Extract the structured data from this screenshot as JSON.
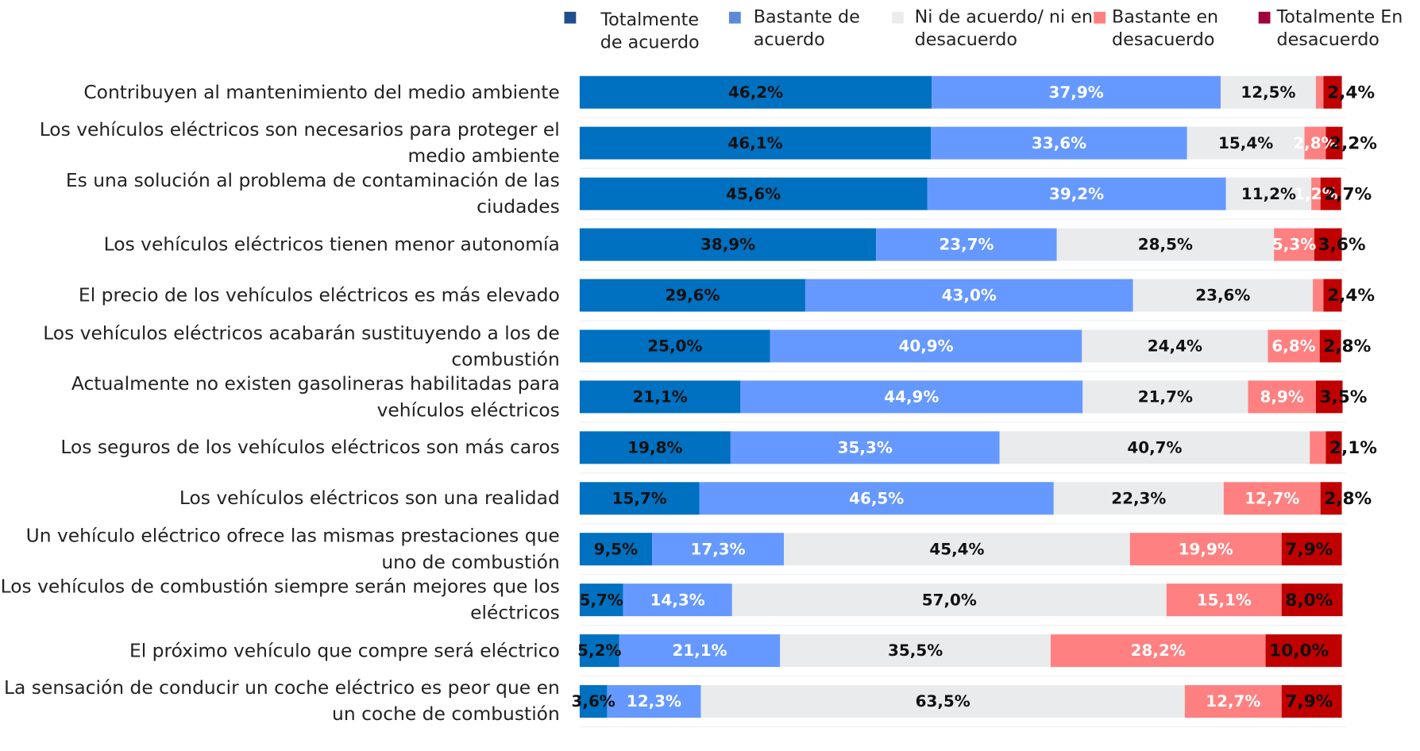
{
  "chart_data": {
    "type": "bar",
    "orientation": "horizontal",
    "stacked": true,
    "legend": "top",
    "xlim": [
      0,
      100
    ],
    "categories": [
      "Contribuyen al mantenimiento del medio ambiente",
      "Los vehículos eléctricos son necesarios para proteger el medio ambiente",
      "Es una solución al problema de contaminación de las ciudades",
      "Los vehículos eléctricos tienen menor autonomía",
      "El precio de los vehículos eléctricos es más elevado",
      "Los vehículos eléctricos acabarán sustituyendo a los de combustión",
      "Actualmente no existen gasolineras habilitadas para vehículos eléctricos",
      "Los seguros de los vehículos eléctricos son más caros",
      "Los vehículos eléctricos son una realidad",
      "Un vehículo eléctrico ofrece las mismas prestaciones que uno de combustión",
      "Los vehículos de combustión siempre serán mejores que los eléctricos",
      "El próximo vehículo que compre será eléctrico",
      "La sensación de conducir un coche eléctrico es peor que en un coche de combustión"
    ],
    "series": [
      {
        "name": "Totalmente de acuerdo",
        "color": "#0070c0",
        "legend_color": "#1f4e8c",
        "label_color": "#111111",
        "values": [
          46.2,
          46.1,
          45.6,
          38.9,
          29.6,
          25.0,
          21.1,
          19.8,
          15.7,
          9.5,
          5.7,
          5.2,
          3.6
        ],
        "value_labels": [
          "46,2%",
          "46,1%",
          "45,6%",
          "38,9%",
          "29,6%",
          "25,0%",
          "21,1%",
          "19,8%",
          "15,7%",
          "9,5%",
          "5,7%",
          "5,2%",
          "3,6%"
        ]
      },
      {
        "name": "Bastante de acuerdo",
        "color": "#6699ff",
        "legend_color": "#5b8bd8",
        "label_color": "#ffffff",
        "values": [
          37.9,
          33.6,
          39.2,
          23.7,
          43.0,
          40.9,
          44.9,
          35.3,
          46.5,
          17.3,
          14.3,
          21.1,
          12.3
        ],
        "value_labels": [
          "37,9%",
          "33,6%",
          "39,2%",
          "23,7%",
          "43,0%",
          "40,9%",
          "44,9%",
          "35,3%",
          "46,5%",
          "17,3%",
          "14,3%",
          "21,1%",
          "12,3%"
        ]
      },
      {
        "name": "Ni de acuerdo/ ni en desacuerdo",
        "color": "#e9ebed",
        "legend_color": "#ececec",
        "label_color": "#111111",
        "values": [
          12.5,
          15.4,
          11.2,
          28.5,
          23.6,
          24.4,
          21.7,
          40.7,
          22.3,
          45.4,
          57.0,
          35.5,
          63.5
        ],
        "value_labels": [
          "12,5%",
          "15,4%",
          "11,2%",
          "28,5%",
          "23,6%",
          "24,4%",
          "21,7%",
          "40,7%",
          "22,3%",
          "45,4%",
          "57,0%",
          "35,5%",
          "63,5%"
        ]
      },
      {
        "name": "Bastante en desacuerdo",
        "color": "#ff8080",
        "legend_color": "#ff7f7f",
        "label_color": "#ffffff",
        "values": [
          1.0,
          2.8,
          1.2,
          5.3,
          1.4,
          6.8,
          8.9,
          2.1,
          12.7,
          19.9,
          15.1,
          28.2,
          12.7
        ],
        "value_labels": [
          null,
          "2,8%",
          "1,2%",
          "5,3%",
          null,
          "6,8%",
          "8,9%",
          null,
          "12,7%",
          "19,9%",
          "15,1%",
          "28,2%",
          "12,7%"
        ]
      },
      {
        "name": "Totalmente En desacuerdo",
        "color": "#c00000",
        "legend_color": "#a0003c",
        "label_color": "#111111",
        "values": [
          2.4,
          2.2,
          2.7,
          3.6,
          2.4,
          2.8,
          3.5,
          2.1,
          2.8,
          7.9,
          8.0,
          10.0,
          7.9
        ],
        "value_labels": [
          "2,4%",
          "2,2%",
          "2,7%",
          "3,6%",
          "2,4%",
          "2,8%",
          "3,5%",
          "2,1%",
          "2,8%",
          "7,9%",
          "8,0%",
          "10,0%",
          "7,9%"
        ]
      }
    ]
  }
}
